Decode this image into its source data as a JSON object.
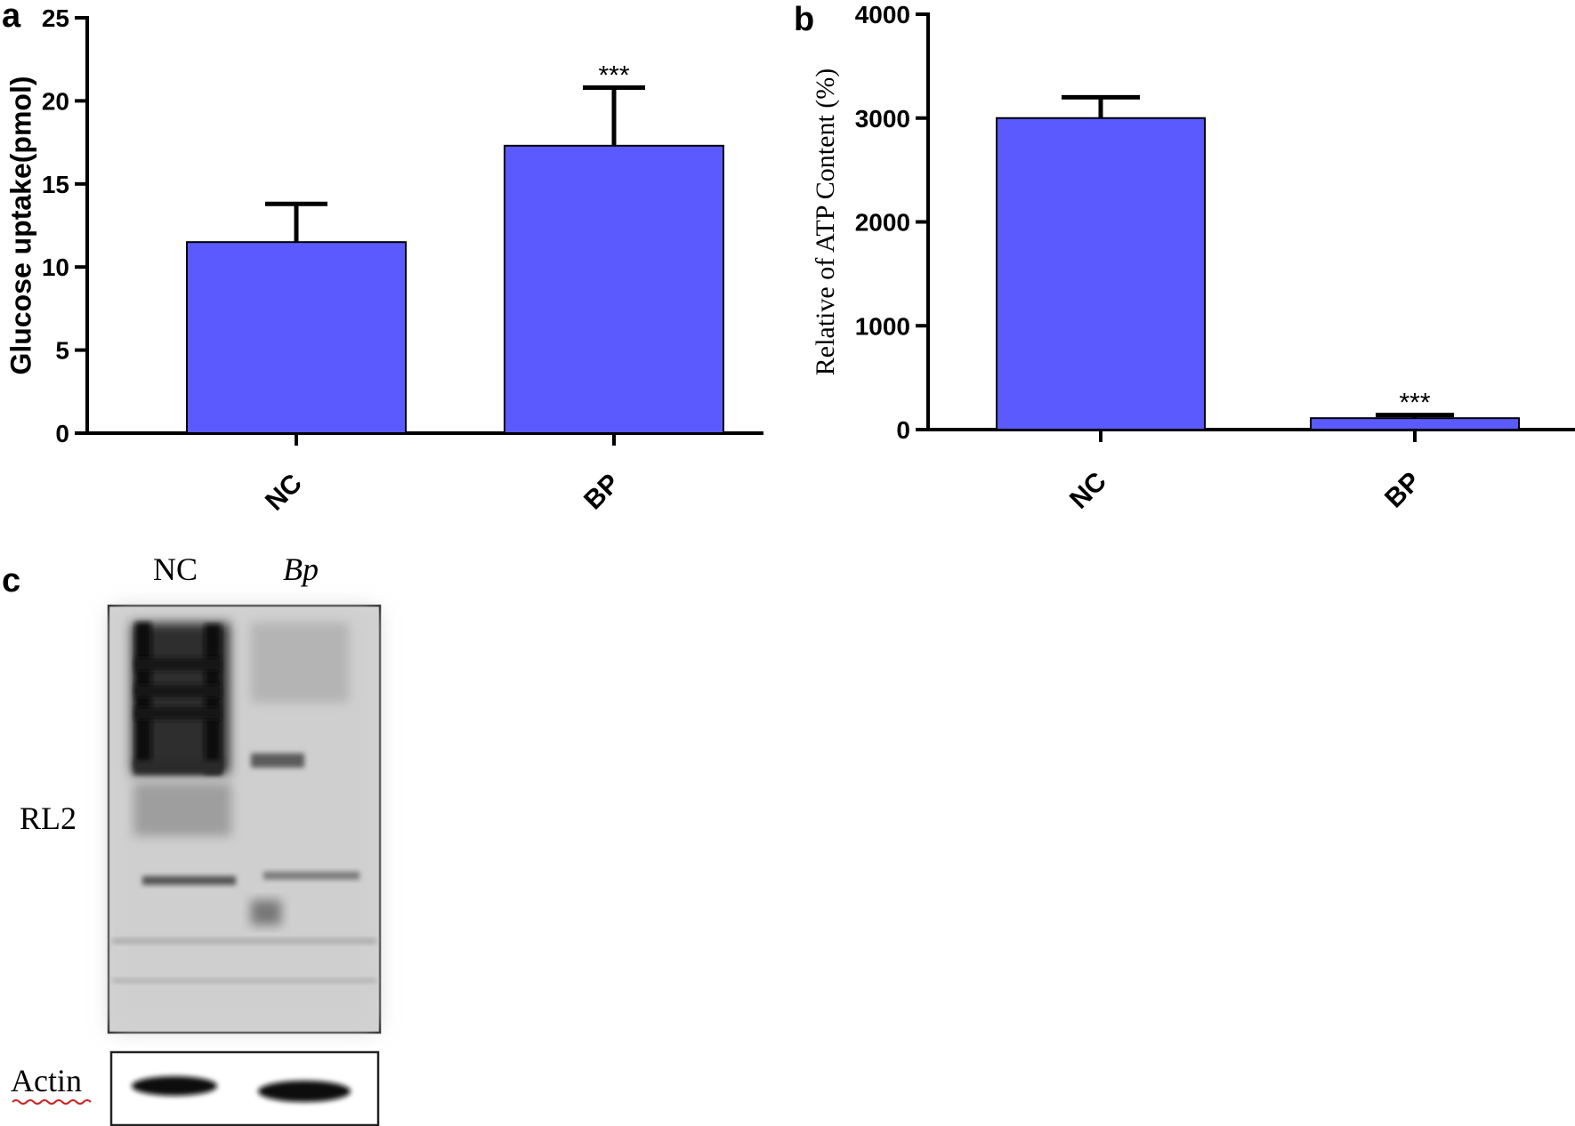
{
  "chart_data": [
    {
      "panel": "a",
      "type": "bar",
      "categories": [
        "NC",
        "BP"
      ],
      "values": [
        11.5,
        17.3
      ],
      "errors": [
        2.3,
        3.5
      ],
      "significance": [
        "",
        "***"
      ],
      "ylabel": "Glucose uptake(pmol)",
      "xlabel": "",
      "ylim": [
        0,
        25
      ],
      "yticks": [
        0,
        5,
        10,
        15,
        20,
        25
      ],
      "bar_color": "#5a5aff"
    },
    {
      "panel": "b",
      "type": "bar",
      "categories": [
        "NC",
        "BP"
      ],
      "values": [
        3000,
        110
      ],
      "errors": [
        200,
        30
      ],
      "significance": [
        "",
        "***"
      ],
      "ylabel": "Relative of ATP Content (%)",
      "xlabel": "",
      "ylim": [
        0,
        4000
      ],
      "yticks": [
        0,
        1000,
        2000,
        3000,
        4000
      ],
      "bar_color": "#5a5aff"
    }
  ],
  "blot": {
    "panel": "c",
    "lanes": [
      "NC",
      "Bp"
    ],
    "rows": [
      "RL2",
      "Actin"
    ]
  }
}
